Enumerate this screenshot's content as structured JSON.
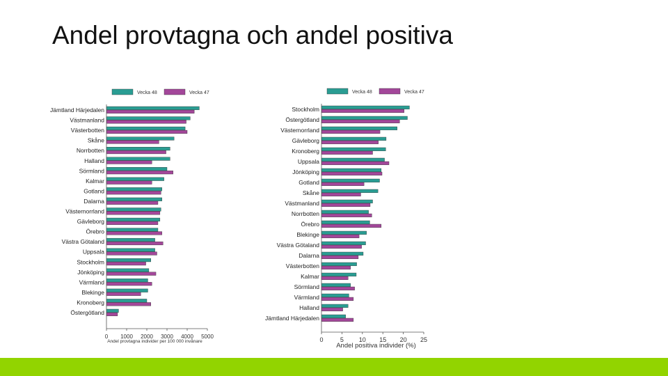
{
  "slide": {
    "title": "Andel provtagna och andel positiva"
  },
  "colors": {
    "series1": "#2a9d93",
    "series2": "#a3479a",
    "footer": "#92d400",
    "axis": "#555555"
  },
  "chart_data": [
    {
      "type": "bar",
      "orientation": "horizontal",
      "categories": [
        "Jämtland Härjedalen",
        "Västmanland",
        "Västerbotten",
        "Skåne",
        "Norrbotten",
        "Halland",
        "Sörmland",
        "Kalmar",
        "Gotland",
        "Dalarna",
        "Västernorrland",
        "Gävleborg",
        "Örebro",
        "Västra Götaland",
        "Uppsala",
        "Stockholm",
        "Jönköping",
        "Värmland",
        "Blekinge",
        "Kronoberg",
        "Östergötland"
      ],
      "series": [
        {
          "name": "Vecka 48",
          "values": [
            4600,
            4150,
            3900,
            3350,
            3150,
            3150,
            3000,
            2850,
            2750,
            2750,
            2700,
            2650,
            2550,
            2400,
            2400,
            2200,
            2100,
            2050,
            2050,
            2000,
            600
          ]
        },
        {
          "name": "Vecka 47",
          "values": [
            4350,
            3950,
            4000,
            2600,
            2950,
            2250,
            3300,
            2250,
            2700,
            2550,
            2650,
            2550,
            2750,
            2800,
            2500,
            1950,
            2450,
            2250,
            1700,
            2200,
            550
          ]
        }
      ],
      "xlabel": "Andel provtagna individer per 100 000 invånare",
      "xlim": [
        0,
        5000
      ],
      "xticks": [
        "0",
        "1000",
        "2000",
        "3000",
        "4000",
        "5000"
      ],
      "legend": "top"
    },
    {
      "type": "bar",
      "orientation": "horizontal",
      "categories": [
        "Stockholm",
        "Östergötland",
        "Västernorrland",
        "Gävleborg",
        "Kronoberg",
        "Uppsala",
        "Jönköping",
        "Gotland",
        "Skåne",
        "Västmanland",
        "Norrbotten",
        "Örebro",
        "Blekinge",
        "Västra Götaland",
        "Dalarna",
        "Västerbotten",
        "Kalmar",
        "Sörmland",
        "Värmland",
        "Halland",
        "Jämtland Härjedalen"
      ],
      "series": [
        {
          "name": "Vecka 48",
          "values": [
            21.5,
            21,
            18.5,
            15.8,
            15.7,
            15.4,
            14.6,
            14.2,
            13.8,
            12.5,
            11.5,
            11.8,
            11,
            10.8,
            10.2,
            8.6,
            8.5,
            7.1,
            6.7,
            6.5,
            5.9
          ]
        },
        {
          "name": "Vecka 47",
          "values": [
            20.2,
            19.1,
            14.3,
            13.9,
            12.5,
            16.5,
            14.8,
            10.4,
            9.6,
            11.9,
            12.3,
            14.6,
            9.2,
            9.8,
            9,
            7.1,
            6.5,
            8.1,
            7.8,
            5.2,
            7.8
          ]
        }
      ],
      "xlabel": "Andel positiva individer (%)",
      "xlim": [
        0,
        25
      ],
      "xticks": [
        "0",
        "5",
        "10",
        "15",
        "20",
        "25"
      ],
      "legend": "top"
    }
  ]
}
